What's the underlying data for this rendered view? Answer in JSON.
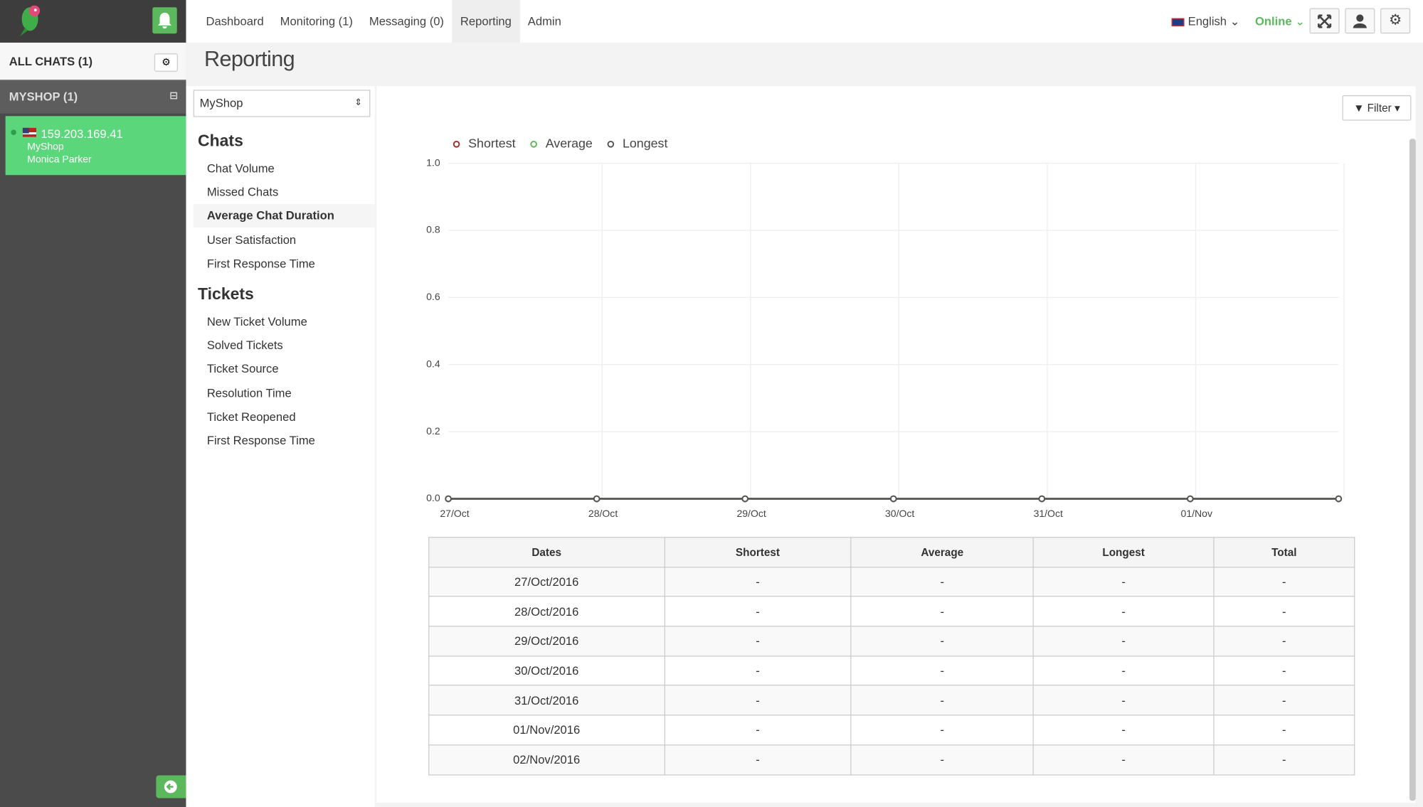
{
  "nav": {
    "items": [
      "Dashboard",
      "Monitoring (1)",
      "Messaging (0)",
      "Reporting",
      "Admin"
    ],
    "language": "English",
    "status": "Online"
  },
  "sidebar": {
    "all_chats": "ALL CHATS (1)",
    "group": "MYSHOP (1)",
    "chat": {
      "ip": "159.203.169.41",
      "site": "MyShop",
      "agent": "Monica Parker"
    }
  },
  "page_title": "Reporting",
  "select": "MyShop",
  "menu": [
    {
      "heading": "Chats",
      "items": [
        "Chat Volume",
        "Missed Chats",
        "Average Chat Duration",
        "User Satisfaction",
        "First Response Time"
      ]
    },
    {
      "heading": "Tickets",
      "items": [
        "New Ticket Volume",
        "Solved Tickets",
        "Ticket Source",
        "Resolution Time",
        "Ticket Reopened",
        "First Response Time"
      ]
    }
  ],
  "filter": "Filter",
  "chart_data": {
    "type": "line",
    "categories": [
      "27/Oct",
      "28/Oct",
      "29/Oct",
      "30/Oct",
      "31/Oct",
      "01/Nov",
      null
    ],
    "series": [
      {
        "name": "Shortest",
        "color": "#a52a2a",
        "values": [
          0,
          0,
          0,
          0,
          0,
          0,
          0
        ]
      },
      {
        "name": "Average",
        "color": "#5cb85c",
        "values": [
          0,
          0,
          0,
          0,
          0,
          0,
          0
        ]
      },
      {
        "name": "Longest",
        "color": "#555555",
        "values": [
          0,
          0,
          0,
          0,
          0,
          0,
          0
        ]
      }
    ],
    "ylim": [
      0,
      1
    ],
    "yticks": [
      {
        "value": 0,
        "label": "0.0"
      },
      0.2,
      0.4,
      0.6,
      0.8,
      {
        "value": 1,
        "label": "1.0"
      }
    ],
    "grid": true,
    "legend": "top-left"
  },
  "table": {
    "headers": [
      "Dates",
      "Shortest",
      "Average",
      "Longest",
      "Total"
    ],
    "rows": [
      [
        "27/Oct/2016",
        "-",
        "-",
        "-",
        "-"
      ],
      [
        "28/Oct/2016",
        "-",
        "-",
        "-",
        "-"
      ],
      [
        "29/Oct/2016",
        "-",
        "-",
        "-",
        "-"
      ],
      [
        "30/Oct/2016",
        "-",
        "-",
        "-",
        "-"
      ],
      [
        "31/Oct/2016",
        "-",
        "-",
        "-",
        "-"
      ],
      [
        "01/Nov/2016",
        "-",
        "-",
        "-",
        "-"
      ],
      [
        "02/Nov/2016",
        "-",
        "-",
        "-",
        "-"
      ]
    ]
  }
}
